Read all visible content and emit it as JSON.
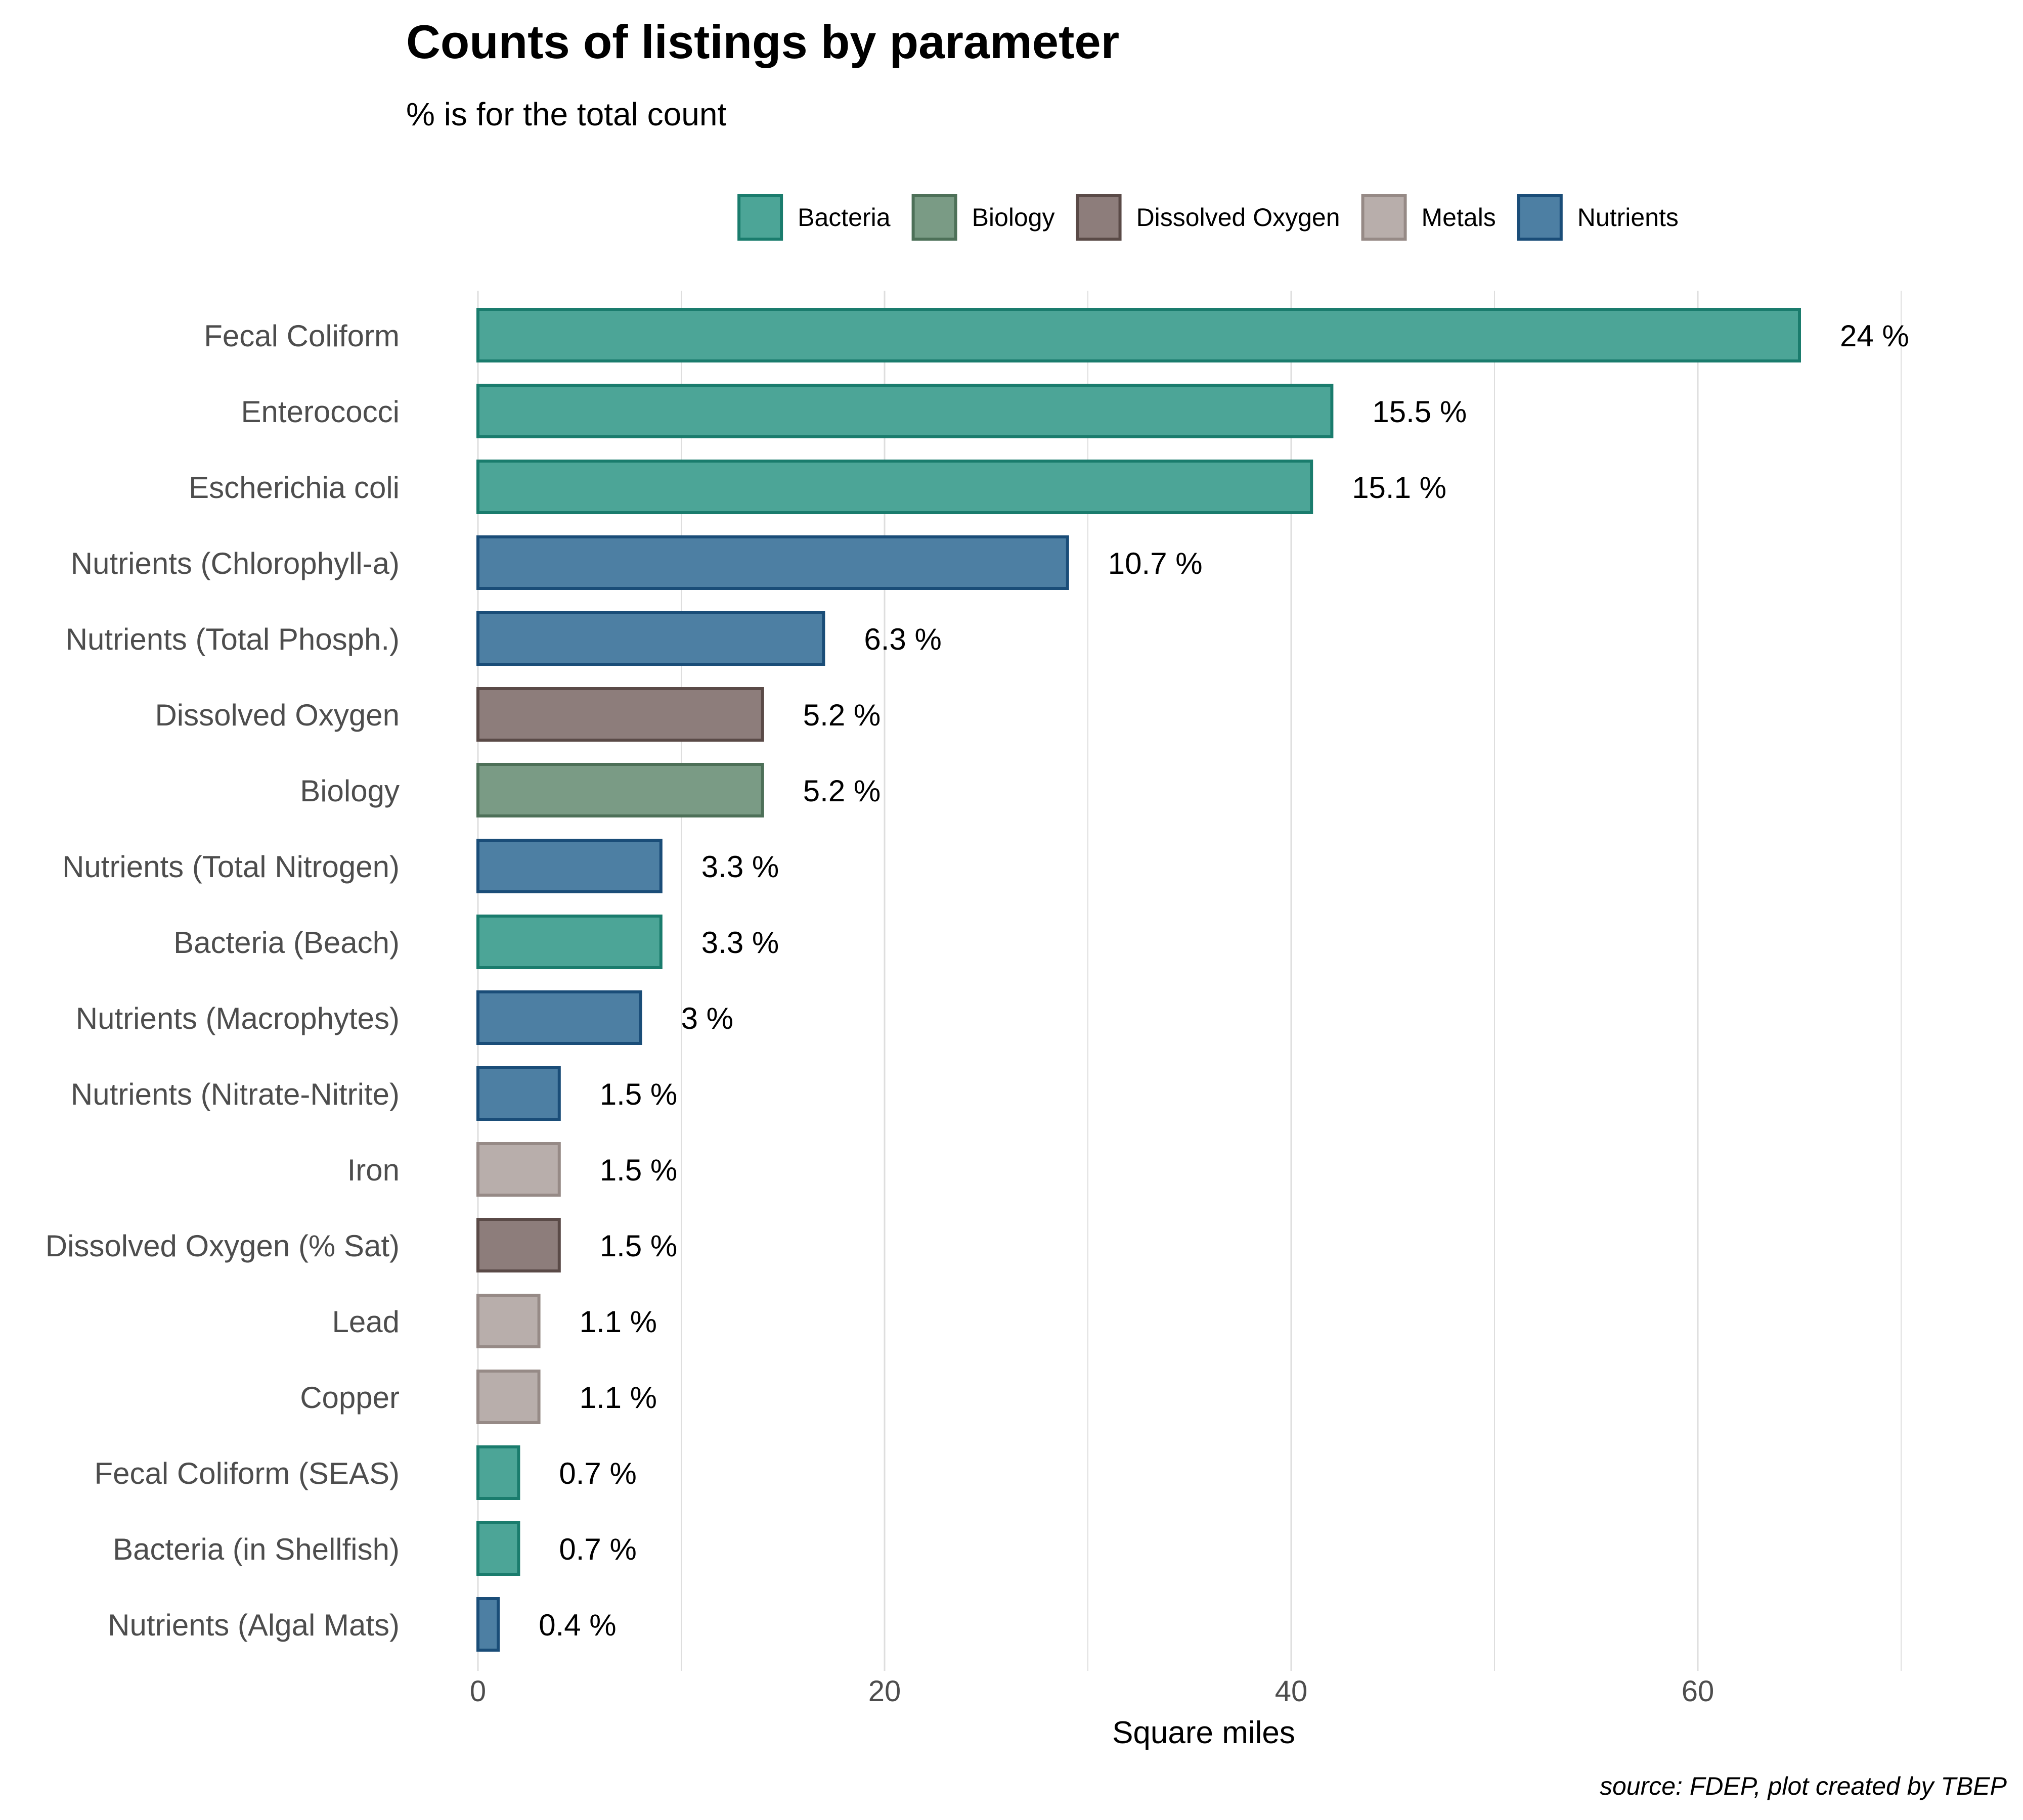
{
  "chart_data": {
    "type": "bar",
    "orientation": "horizontal",
    "title": "Counts of listings by parameter",
    "subtitle": "% is for the total count",
    "xlabel": "Square miles",
    "ylabel": "",
    "xlim": [
      0,
      70
    ],
    "xticks": [
      0,
      20,
      40,
      60
    ],
    "grid": true,
    "caption": "source: FDEP, plot created by TBEP",
    "legend_position": "top",
    "groups": [
      {
        "name": "Bacteria",
        "fill": "#4ca597",
        "stroke": "#1a7c6d"
      },
      {
        "name": "Biology",
        "fill": "#7a9b85",
        "stroke": "#4d7058"
      },
      {
        "name": "Dissolved Oxygen",
        "fill": "#8d7d7b",
        "stroke": "#5a4a47"
      },
      {
        "name": "Metals",
        "fill": "#b8aeab",
        "stroke": "#968a86"
      },
      {
        "name": "Nutrients",
        "fill": "#4d7fa3",
        "stroke": "#1a4d78"
      }
    ],
    "categories": [
      "Fecal Coliform",
      "Enterococci",
      "Escherichia coli",
      "Nutrients (Chlorophyll-a)",
      "Nutrients (Total Phosph.)",
      "Dissolved Oxygen",
      "Biology",
      "Nutrients (Total Nitrogen)",
      "Bacteria (Beach)",
      "Nutrients (Macrophytes)",
      "Nutrients (Nitrate-Nitrite)",
      "Iron",
      "Dissolved Oxygen (% Sat)",
      "Lead",
      "Copper",
      "Fecal Coliform (SEAS)",
      "Bacteria (in Shellfish)",
      "Nutrients (Algal Mats)"
    ],
    "values": [
      65,
      42,
      41,
      29,
      17,
      14,
      14,
      9,
      9,
      8,
      4,
      4,
      4,
      3,
      3,
      2,
      2,
      1
    ],
    "labels": [
      "24 %",
      "15.5 %",
      "15.1 %",
      "10.7 %",
      "6.3 %",
      "5.2 %",
      "5.2 %",
      "3.3 %",
      "3.3 %",
      "3 %",
      "1.5 %",
      "1.5 %",
      "1.5 %",
      "1.1 %",
      "1.1 %",
      "0.7 %",
      "0.7 %",
      "0.4 %"
    ],
    "group_of": [
      "Bacteria",
      "Bacteria",
      "Bacteria",
      "Nutrients",
      "Nutrients",
      "Dissolved Oxygen",
      "Biology",
      "Nutrients",
      "Bacteria",
      "Nutrients",
      "Nutrients",
      "Metals",
      "Dissolved Oxygen",
      "Metals",
      "Metals",
      "Bacteria",
      "Bacteria",
      "Nutrients"
    ]
  }
}
